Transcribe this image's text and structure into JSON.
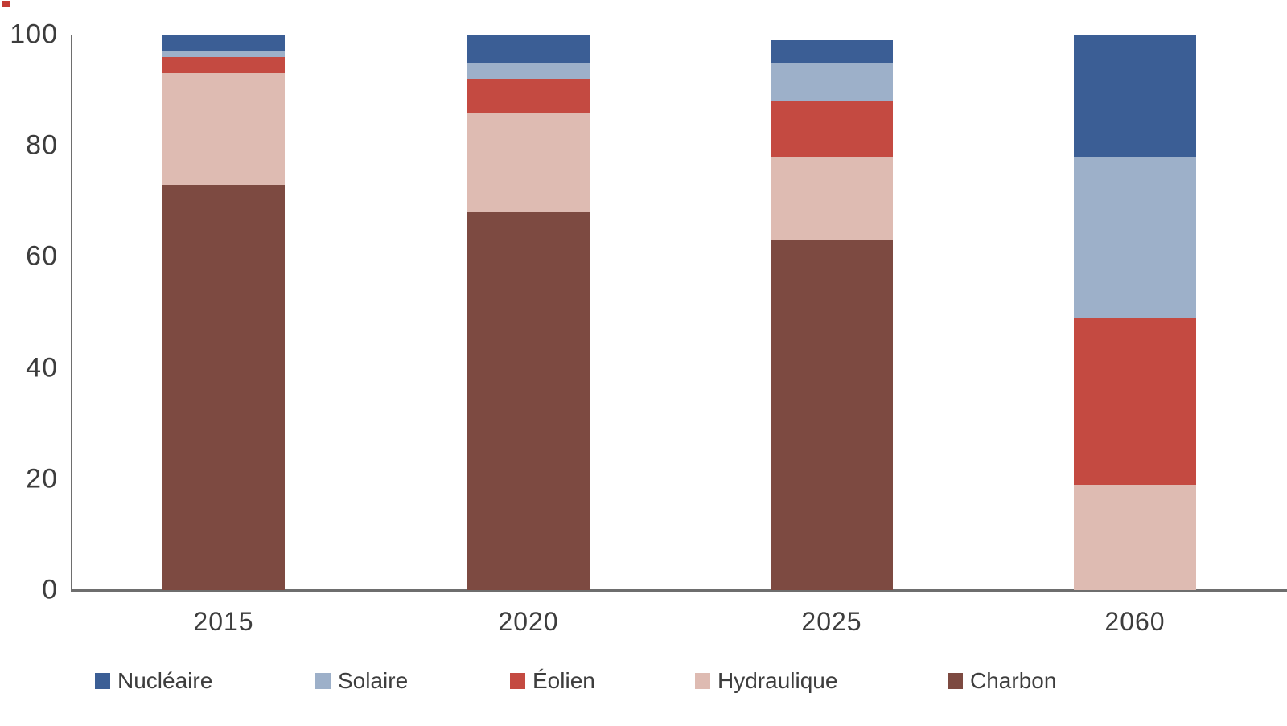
{
  "chart_data": {
    "type": "bar",
    "stacked": true,
    "title": "",
    "xlabel": "",
    "ylabel": "",
    "ylim": [
      0,
      100
    ],
    "yticks": [
      "0",
      "20",
      "40",
      "60",
      "80",
      "100"
    ],
    "ytick_values": [
      0,
      20,
      40,
      60,
      80,
      100
    ],
    "grid": false,
    "legend_position": "bottom",
    "categories": [
      "2015",
      "2020",
      "2025",
      "2060"
    ],
    "series": [
      {
        "name": "Charbon",
        "color": "#7d4a41",
        "values": [
          73,
          68,
          63,
          0
        ]
      },
      {
        "name": "Hydraulique",
        "color": "#debbb2",
        "values": [
          20,
          18,
          15,
          19
        ]
      },
      {
        "name": "Éolien",
        "color": "#c44a41",
        "values": [
          3,
          6,
          10,
          30
        ]
      },
      {
        "name": "Solaire",
        "color": "#9db0c9",
        "values": [
          1,
          3,
          7,
          29
        ]
      },
      {
        "name": "Nucléaire",
        "color": "#3b5e95",
        "values": [
          3,
          5,
          4,
          22
        ]
      }
    ],
    "legend_order": [
      "Nucléaire",
      "Solaire",
      "Éolien",
      "Hydraulique",
      "Charbon"
    ]
  },
  "misc": {
    "top_left_artifact_color": "#c23b34",
    "axis_color": "#6e6e6e",
    "text_color": "#3d3d3d"
  }
}
